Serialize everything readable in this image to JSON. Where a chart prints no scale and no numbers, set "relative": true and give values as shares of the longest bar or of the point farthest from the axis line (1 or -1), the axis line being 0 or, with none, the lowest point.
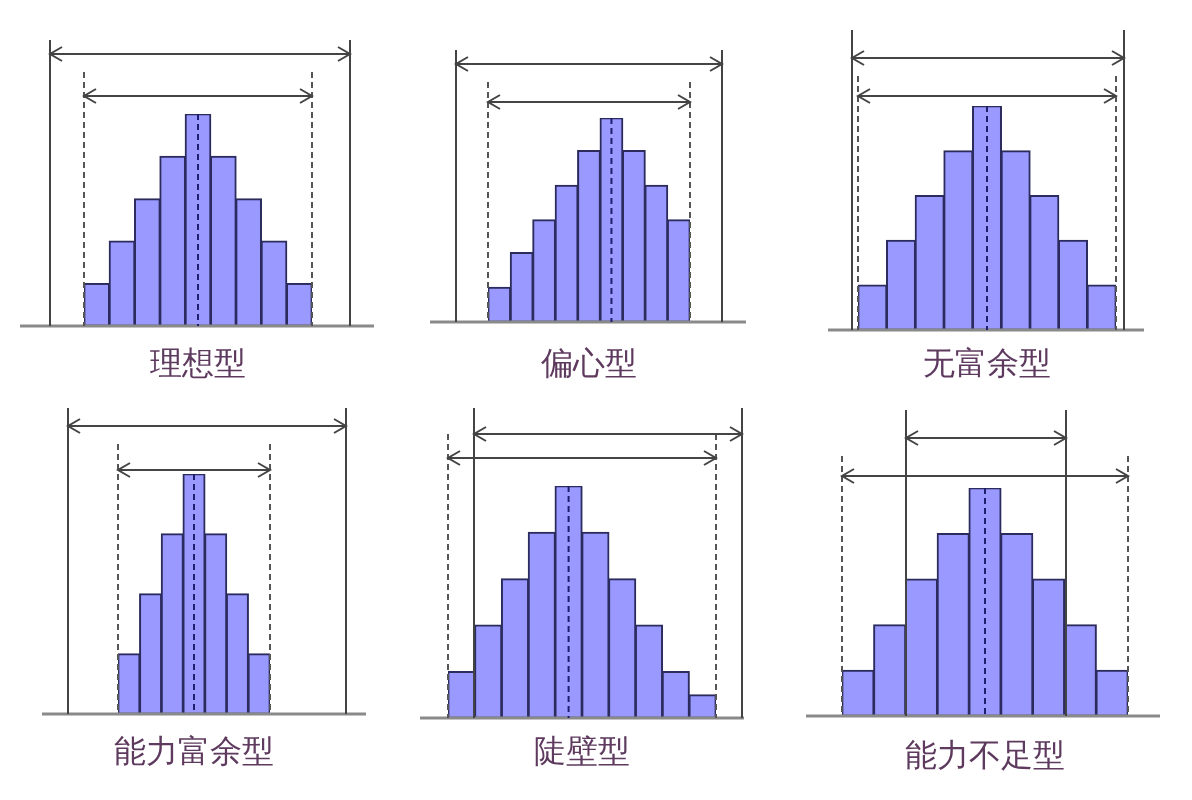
{
  "chart_data": [
    {
      "type": "bar",
      "title": "理想型",
      "categories": [
        null,
        null,
        null,
        null,
        null,
        null,
        null,
        null,
        null
      ],
      "values": [
        0.2,
        0.4,
        0.6,
        0.8,
        1,
        0.8,
        0.6,
        0.4,
        0.2
      ],
      "color": "#9999ff",
      "relative": true
    },
    {
      "type": "bar",
      "title": "偏心型",
      "categories": [
        null,
        null,
        null,
        null,
        null,
        null,
        null,
        null,
        null
      ],
      "values": [
        0.17,
        0.34,
        0.5,
        0.67,
        0.84,
        1,
        0.84,
        0.67,
        0.5
      ],
      "color": "#9999ff",
      "relative": true
    },
    {
      "type": "bar",
      "title": "无富余型",
      "categories": [
        null,
        null,
        null,
        null,
        null,
        null,
        null,
        null,
        null
      ],
      "values": [
        0.2,
        0.4,
        0.6,
        0.8,
        1,
        0.8,
        0.6,
        0.4,
        0.2
      ],
      "color": "#9999ff",
      "relative": true
    },
    {
      "type": "bar",
      "title": "能力富余型",
      "categories": [
        null,
        null,
        null,
        null,
        null,
        null,
        null
      ],
      "values": [
        0.25,
        0.5,
        0.75,
        1,
        0.75,
        0.5,
        0.25
      ],
      "color": "#9999ff",
      "relative": true
    },
    {
      "type": "bar",
      "title": "陡壁型",
      "categories": [
        null,
        null,
        null,
        null,
        null,
        null,
        null,
        null,
        null,
        null
      ],
      "values": [
        0.2,
        0.4,
        0.6,
        0.8,
        1,
        0.8,
        0.6,
        0.4,
        0.2,
        0.1
      ],
      "color": "#9999ff",
      "relative": true
    },
    {
      "type": "bar",
      "title": "能力不足型",
      "categories": [
        null,
        null,
        null,
        null,
        null,
        null,
        null,
        null,
        null
      ],
      "values": [
        0.2,
        0.4,
        0.6,
        0.8,
        1,
        0.8,
        0.6,
        0.4,
        0.2
      ],
      "color": "#9999ff",
      "relative": true
    }
  ]
}
